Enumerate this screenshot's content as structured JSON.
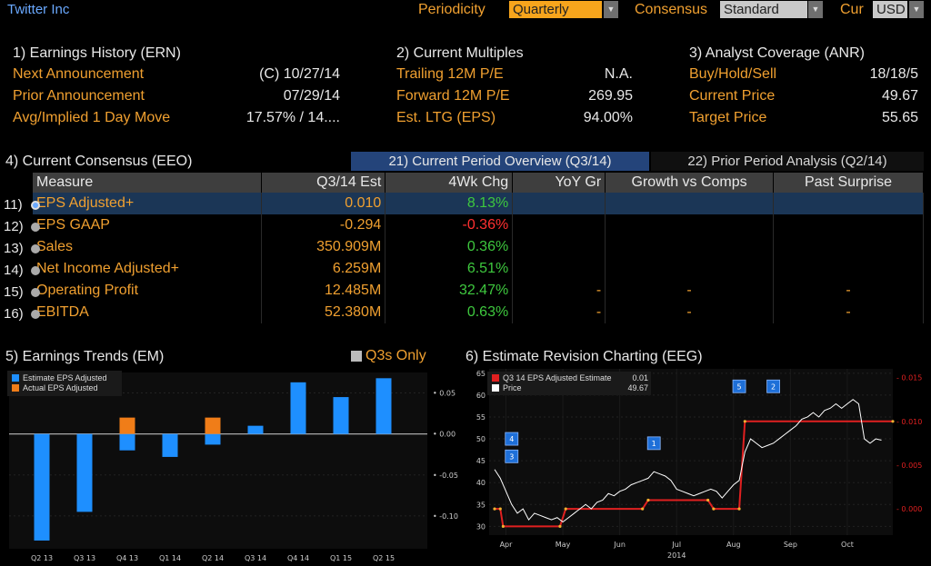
{
  "header": {
    "title": "Twitter Inc",
    "periodicity_label": "Periodicity",
    "periodicity_value": "Quarterly",
    "consensus_label": "Consensus",
    "consensus_value": "Standard",
    "cur_label": "Cur",
    "cur_value": "USD"
  },
  "earnings_history": {
    "title": "1) Earnings History (ERN)",
    "rows": [
      {
        "label": "Next Announcement",
        "value": "(C)  10/27/14"
      },
      {
        "label": "Prior Announcement",
        "value": "07/29/14"
      },
      {
        "label": "Avg/Implied 1 Day Move",
        "value": "17.57% / 14...."
      }
    ]
  },
  "multiples": {
    "title": "2) Current Multiples",
    "rows": [
      {
        "label": "Trailing 12M P/E",
        "value": "N.A."
      },
      {
        "label": "Forward 12M P/E",
        "value": "269.95"
      },
      {
        "label": "Est. LTG (EPS)",
        "value": "94.00%"
      }
    ]
  },
  "analyst": {
    "title": "3) Analyst Coverage (ANR)",
    "rows": [
      {
        "label": "Buy/Hold/Sell",
        "value": "18/18/5"
      },
      {
        "label": "Current Price",
        "value": "49.67"
      },
      {
        "label": "Target Price",
        "value": "55.65"
      }
    ]
  },
  "consensus": {
    "title": "4) Current Consensus (EEO)",
    "tab_current": "21) Current Period Overview (Q3/14)",
    "tab_prior": "22) Prior Period Analysis (Q2/14)",
    "columns": [
      "Measure",
      "Q3/14 Est",
      "4Wk Chg",
      "YoY Gr",
      "Growth vs Comps",
      "Past Surprise"
    ],
    "rows": [
      {
        "num": "11)",
        "measure": "EPS Adjusted+",
        "est": "0.010",
        "chg": "8.13%",
        "yoy": "",
        "gvc": "",
        "ps": ""
      },
      {
        "num": "12)",
        "measure": "EPS GAAP",
        "est": "-0.294",
        "chg": "-0.36%",
        "yoy": "",
        "gvc": "",
        "ps": ""
      },
      {
        "num": "13)",
        "measure": "Sales",
        "est": "350.909M",
        "chg": "0.36%",
        "yoy": "",
        "gvc": "",
        "ps": ""
      },
      {
        "num": "14)",
        "measure": "Net Income Adjusted+",
        "est": "6.259M",
        "chg": "6.51%",
        "yoy": "",
        "gvc": "",
        "ps": ""
      },
      {
        "num": "15)",
        "measure": "Operating Profit",
        "est": "12.485M",
        "chg": "32.47%",
        "yoy": "-",
        "gvc": "-",
        "ps": "-"
      },
      {
        "num": "16)",
        "measure": "EBITDA",
        "est": "52.380M",
        "chg": "0.63%",
        "yoy": "-",
        "gvc": "-",
        "ps": "-"
      }
    ]
  },
  "trends": {
    "title": "5) Earnings Trends (EM)",
    "q3s_only": "Q3s Only"
  },
  "revision": {
    "title": "6) Estimate Revision Charting (EEG)",
    "markers": [
      "4",
      "3",
      "1",
      "5",
      "2"
    ]
  },
  "chart_data": [
    {
      "type": "bar",
      "categories": [
        "Q2 13",
        "Q3 13",
        "Q4 13",
        "Q1 14",
        "Q2 14",
        "Q3 14",
        "Q4 14",
        "Q1 15",
        "Q2 15"
      ],
      "series": [
        {
          "name": "Estimate EPS Adjusted",
          "color": "#1e8fff",
          "values": [
            -0.13,
            -0.095,
            -0.02,
            -0.028,
            -0.013,
            0.01,
            0.063,
            0.045,
            0.068
          ]
        },
        {
          "name": "Actual EPS Adjusted",
          "color": "#f07d18",
          "values": [
            null,
            null,
            0.02,
            null,
            0.02,
            null,
            null,
            null,
            null
          ]
        }
      ],
      "yticks": [
        "0.05",
        "0.00",
        "-0.05",
        "-0.10"
      ],
      "ytick_values": [
        0.05,
        0.0,
        -0.05,
        -0.1
      ],
      "ylim": [
        -0.14,
        0.075
      ],
      "legend": "top-left"
    },
    {
      "type": "line",
      "x_ticks": [
        "Apr",
        "May",
        "Jun",
        "Jul",
        "Aug",
        "Sep",
        "Oct"
      ],
      "x_year": "2014",
      "yticks_left": [
        "65",
        "60",
        "55",
        "50",
        "45",
        "40",
        "35",
        "30"
      ],
      "yticks_left_values": [
        65,
        60,
        55,
        50,
        45,
        40,
        35,
        30
      ],
      "yticks_right": [
        "0.015",
        "0.010",
        "0.005",
        "0.000"
      ],
      "yticks_right_values": [
        0.015,
        0.01,
        0.005,
        0.0
      ],
      "ylim_left": [
        28,
        66
      ],
      "ylim_right": [
        -0.003,
        0.016
      ],
      "xlim": [
        0,
        7
      ],
      "series": [
        {
          "name": "Q3 14 EPS Adjusted Estimate",
          "legend_value": "0.01",
          "color": "#e02020",
          "x": [
            0.0,
            0.1,
            0.15,
            1.15,
            1.25,
            2.6,
            2.7,
            3.75,
            3.85,
            4.3,
            4.4,
            7.0
          ],
          "y": [
            0.0,
            0.0,
            -0.002,
            -0.002,
            0.0,
            0.0,
            0.001,
            0.001,
            0.0,
            0.0,
            0.01,
            0.01
          ]
        },
        {
          "name": "Price",
          "legend_value": "49.67",
          "color": "#ffffff",
          "x": [
            0.0,
            0.1,
            0.2,
            0.3,
            0.4,
            0.5,
            0.6,
            0.7,
            0.8,
            0.9,
            1.0,
            1.1,
            1.2,
            1.3,
            1.4,
            1.5,
            1.6,
            1.7,
            1.8,
            1.9,
            2.0,
            2.1,
            2.2,
            2.3,
            2.4,
            2.5,
            2.6,
            2.7,
            2.8,
            2.9,
            3.0,
            3.1,
            3.2,
            3.3,
            3.4,
            3.5,
            3.6,
            3.7,
            3.8,
            3.9,
            4.0,
            4.1,
            4.2,
            4.3,
            4.4,
            4.5,
            4.6,
            4.7,
            4.8,
            4.9,
            5.0,
            5.1,
            5.2,
            5.3,
            5.4,
            5.5,
            5.6,
            5.7,
            5.8,
            5.9,
            6.0,
            6.1,
            6.2,
            6.3,
            6.4,
            6.5,
            6.6,
            6.7,
            6.8
          ],
          "y": [
            43,
            41,
            38,
            35,
            33,
            34,
            31.5,
            33,
            32.5,
            32,
            31.5,
            32,
            31,
            32,
            33,
            34,
            35,
            34,
            35.5,
            36,
            37.5,
            37,
            38,
            38.5,
            39.5,
            40,
            40.5,
            41,
            42.5,
            42,
            41.5,
            40.5,
            38.5,
            38,
            37.5,
            37,
            37.5,
            38,
            38.5,
            38,
            36.5,
            38,
            39.5,
            40.5,
            47,
            50,
            49,
            48,
            48.5,
            49,
            50,
            51,
            52,
            53,
            54.5,
            55,
            56,
            55,
            56.5,
            57,
            58,
            57,
            58,
            59,
            58,
            50,
            49,
            50,
            49.7
          ]
        }
      ],
      "legend": "top-left"
    }
  ]
}
